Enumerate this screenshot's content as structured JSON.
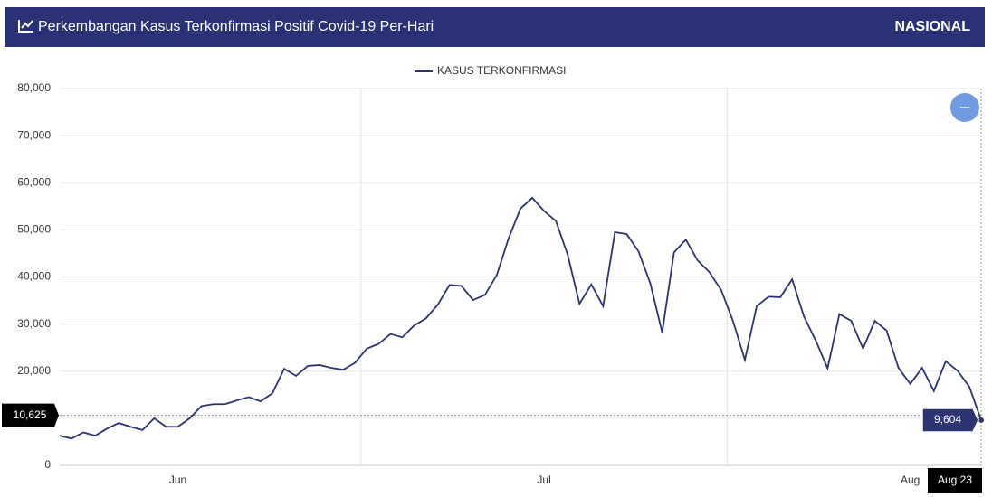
{
  "chart_data": {
    "type": "line",
    "title": "Perkembangan Kasus Terkonfirmasi Positif Covid-19 Per-Hari",
    "region": "NASIONAL",
    "categories": [
      null,
      null,
      null,
      null,
      null,
      null,
      null,
      null,
      null,
      null,
      null,
      null,
      null,
      null,
      null,
      null,
      null,
      null,
      null,
      null,
      null,
      null,
      null,
      null,
      null,
      null,
      null,
      null,
      null,
      null,
      null,
      null,
      null,
      null,
      null,
      null,
      null,
      null,
      null,
      null,
      null,
      null,
      null,
      null,
      null,
      null,
      null,
      null,
      null,
      null,
      null,
      null,
      null,
      null,
      null,
      null,
      null,
      null,
      null,
      null,
      null,
      null,
      null,
      null,
      null,
      null,
      null,
      null,
      null,
      null,
      null,
      null,
      null,
      null,
      null,
      null,
      null,
      null,
      "Aug 23"
    ],
    "xticks": [
      {
        "value": 10,
        "label": "Jun"
      },
      {
        "value": 41,
        "label": "Jul"
      },
      {
        "value": 72,
        "label": "Aug"
      }
    ],
    "ylim": [
      0,
      80000
    ],
    "yticks": [
      0,
      {
        "value": 10000,
        "label": "10,000"
      },
      {
        "value": 20000,
        "label": "20,000"
      },
      {
        "value": 30000,
        "label": "30,000"
      },
      {
        "value": 40000,
        "label": "40,000"
      },
      {
        "value": 50000,
        "label": "50,000"
      },
      {
        "value": 60000,
        "label": "60,000"
      },
      {
        "value": 70000,
        "label": "70,000"
      },
      {
        "value": 80000,
        "label": "80,000"
      }
    ],
    "grid": true,
    "legend": "top",
    "crosshair": {
      "value": 10625,
      "label": "10,625"
    },
    "series": [
      {
        "name": "KASUS TERKONFIRMASI",
        "color": "#2b3370",
        "values": [
          6300,
          5700,
          7000,
          6300,
          7800,
          9000,
          8200,
          7500,
          10000,
          8200,
          8200,
          10000,
          12600,
          13000,
          13000,
          13800,
          14500,
          13600,
          15300,
          20500,
          19000,
          21100,
          21300,
          20700,
          20300,
          21800,
          24800,
          25800,
          27900,
          27200,
          29700,
          31200,
          34100,
          38300,
          38100,
          35100,
          36200,
          40400,
          48200,
          54500,
          56800,
          54000,
          51900,
          44700,
          34300,
          38400,
          33800,
          49500,
          49100,
          45400,
          38600,
          28200,
          45200,
          47900,
          43500,
          41000,
          37200,
          30600,
          22400,
          33800,
          35800,
          35700,
          39500,
          31600,
          26500,
          20600,
          32100,
          30700,
          24800,
          30700,
          28600,
          20700,
          17300,
          20700,
          15800,
          22100,
          20100,
          16700,
          9604
        ],
        "value_labels": [
          null,
          null,
          null,
          null,
          null,
          null,
          null,
          null,
          null,
          null,
          null,
          null,
          null,
          null,
          null,
          null,
          null,
          null,
          null,
          null,
          null,
          null,
          null,
          null,
          null,
          null,
          null,
          null,
          null,
          null,
          null,
          null,
          null,
          null,
          null,
          null,
          null,
          null,
          null,
          null,
          null,
          null,
          null,
          null,
          null,
          null,
          null,
          null,
          null,
          null,
          null,
          null,
          null,
          null,
          null,
          null,
          null,
          null,
          null,
          null,
          null,
          null,
          null,
          null,
          null,
          null,
          null,
          null,
          null,
          null,
          null,
          null,
          null,
          null,
          null,
          null,
          null,
          null,
          "9,604"
        ]
      }
    ]
  }
}
